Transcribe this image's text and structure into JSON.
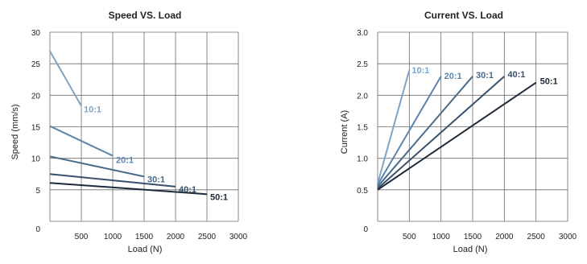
{
  "chart_data": [
    {
      "type": "line",
      "title": "Speed VS. Load",
      "xlabel": "Load (N)",
      "ylabel": "Speed (mm/s)",
      "xlim": [
        0,
        3000
      ],
      "ylim": [
        0,
        30
      ],
      "grid": true,
      "x_ticks": [
        "500",
        "1000",
        "1500",
        "2000",
        "2500",
        "3000"
      ],
      "y_ticks": [
        "0",
        "5",
        "10",
        "15",
        "20",
        "25",
        "30"
      ],
      "series": [
        {
          "name": "10:1",
          "color": "#7aa5c9",
          "points": [
            [
              0,
              27
            ],
            [
              500,
              18.3
            ]
          ]
        },
        {
          "name": "20:1",
          "color": "#5a85ad",
          "points": [
            [
              0,
              15.1
            ],
            [
              1000,
              10.4
            ]
          ]
        },
        {
          "name": "30:1",
          "color": "#4a6a8a",
          "points": [
            [
              0,
              10.3
            ],
            [
              1500,
              7.1
            ]
          ]
        },
        {
          "name": "40:1",
          "color": "#38506b",
          "points": [
            [
              0,
              7.5
            ],
            [
              2000,
              5.5
            ]
          ]
        },
        {
          "name": "50:1",
          "color": "#1e2a3a",
          "points": [
            [
              0,
              6.1
            ],
            [
              2500,
              4.3
            ]
          ]
        }
      ]
    },
    {
      "type": "line",
      "title": "Current VS. Load",
      "xlabel": "Load (N)",
      "ylabel": "Current (A)",
      "xlim": [
        0,
        3000
      ],
      "ylim": [
        0,
        3.0
      ],
      "grid": true,
      "x_ticks": [
        "500",
        "1000",
        "1500",
        "2000",
        "2500",
        "3000"
      ],
      "y_ticks": [
        "0",
        "0.5",
        "1.0",
        "1.5",
        "2.0",
        "2.5",
        "3.0"
      ],
      "series": [
        {
          "name": "10:1",
          "color": "#7aa5c9",
          "points": [
            [
              0,
              0.6
            ],
            [
              500,
              2.4
            ]
          ]
        },
        {
          "name": "20:1",
          "color": "#5a85ad",
          "points": [
            [
              0,
              0.58
            ],
            [
              1000,
              2.3
            ]
          ]
        },
        {
          "name": "30:1",
          "color": "#4a6a8a",
          "points": [
            [
              0,
              0.55
            ],
            [
              1500,
              2.3
            ]
          ]
        },
        {
          "name": "40:1",
          "color": "#38506b",
          "points": [
            [
              0,
              0.52
            ],
            [
              2000,
              2.3
            ]
          ]
        },
        {
          "name": "50:1",
          "color": "#1e2a3a",
          "points": [
            [
              0,
              0.5
            ],
            [
              2500,
              2.2
            ]
          ]
        }
      ]
    }
  ]
}
